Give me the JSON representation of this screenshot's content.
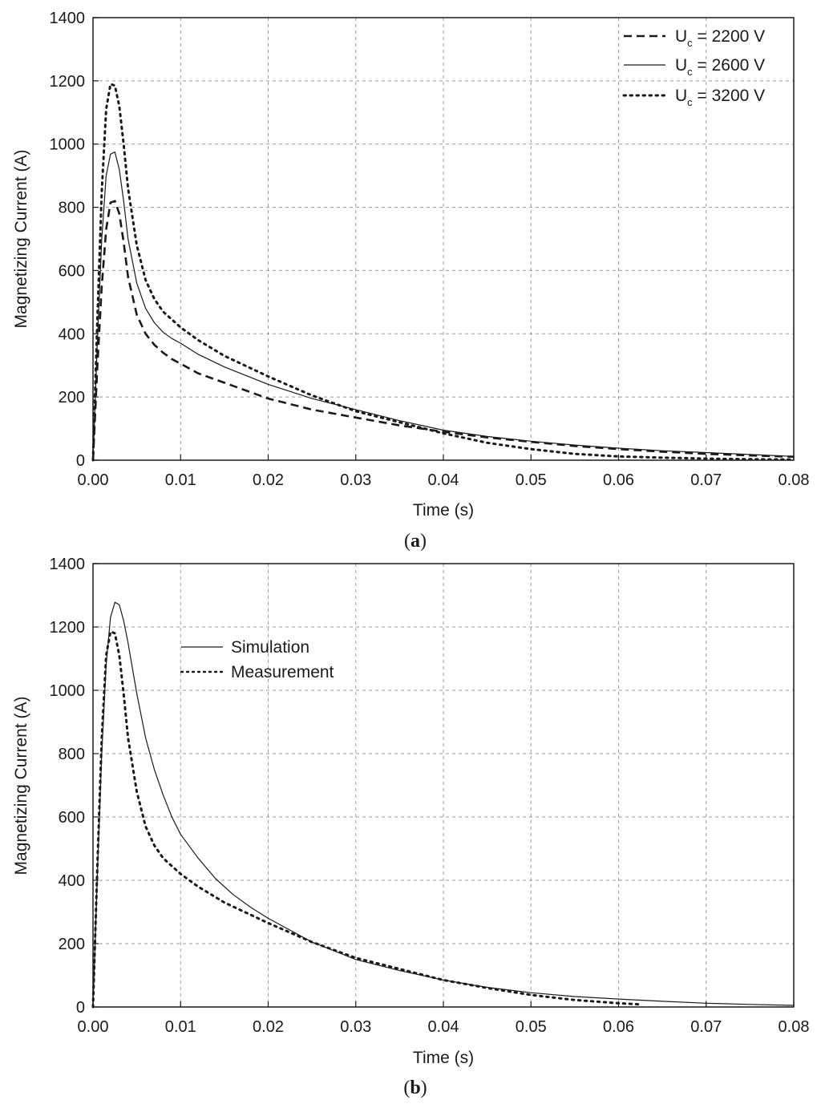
{
  "figure": {
    "panels": [
      {
        "caption_prefix": "(",
        "caption_letter": "a",
        "caption_suffix": ")"
      },
      {
        "caption_prefix": "(",
        "caption_letter": "b",
        "caption_suffix": ")"
      }
    ]
  },
  "chart_data": [
    {
      "type": "line",
      "title": "",
      "xlabel": "Time (s)",
      "ylabel": "Magnetizing Current (A)",
      "xlim": [
        0,
        0.08
      ],
      "ylim": [
        0,
        1400
      ],
      "x_ticks": [
        "0.00",
        "0.01",
        "0.02",
        "0.03",
        "0.04",
        "0.05",
        "0.06",
        "0.07",
        "0.08"
      ],
      "y_ticks": [
        "0",
        "200",
        "400",
        "600",
        "800",
        "1000",
        "1200",
        "1400"
      ],
      "grid": true,
      "legend_position": "top-right",
      "series": [
        {
          "name_prefix": "U",
          "name_sub": "c",
          "name_suffix": " = 2200 V",
          "style": "dashed",
          "x": [
            0,
            0.0005,
            0.001,
            0.0015,
            0.002,
            0.0025,
            0.003,
            0.0035,
            0.004,
            0.005,
            0.006,
            0.007,
            0.008,
            0.009,
            0.01,
            0.012,
            0.015,
            0.02,
            0.025,
            0.03,
            0.035,
            0.04,
            0.045,
            0.05,
            0.055,
            0.06,
            0.065,
            0.07,
            0.075,
            0.08
          ],
          "y": [
            0,
            300,
            550,
            730,
            815,
            820,
            780,
            690,
            580,
            460,
            400,
            365,
            340,
            320,
            305,
            275,
            245,
            195,
            160,
            135,
            110,
            90,
            72,
            58,
            45,
            35,
            27,
            20,
            15,
            11
          ]
        },
        {
          "name_prefix": "U",
          "name_sub": "c",
          "name_suffix": " = 2600 V",
          "style": "solid",
          "x": [
            0,
            0.0005,
            0.001,
            0.0015,
            0.002,
            0.0025,
            0.003,
            0.0035,
            0.004,
            0.005,
            0.006,
            0.007,
            0.008,
            0.009,
            0.01,
            0.012,
            0.015,
            0.02,
            0.025,
            0.03,
            0.035,
            0.04,
            0.045,
            0.05,
            0.055,
            0.06,
            0.065,
            0.07,
            0.075,
            0.08
          ],
          "y": [
            0,
            380,
            700,
            900,
            968,
            975,
            920,
            820,
            700,
            560,
            480,
            435,
            405,
            385,
            370,
            335,
            295,
            240,
            195,
            160,
            125,
            95,
            75,
            60,
            48,
            38,
            30,
            24,
            18,
            12
          ]
        },
        {
          "name_prefix": "U",
          "name_sub": "c",
          "name_suffix": " = 3200 V",
          "style": "dotted",
          "x": [
            0,
            0.0005,
            0.001,
            0.0015,
            0.002,
            0.0025,
            0.003,
            0.0035,
            0.004,
            0.005,
            0.006,
            0.007,
            0.008,
            0.009,
            0.01,
            0.012,
            0.015,
            0.02,
            0.025,
            0.03,
            0.035,
            0.04,
            0.045,
            0.05,
            0.055,
            0.06,
            0.065,
            0.07,
            0.075,
            0.08
          ],
          "y": [
            0,
            450,
            850,
            1110,
            1190,
            1185,
            1120,
            1000,
            860,
            680,
            570,
            510,
            470,
            445,
            420,
            380,
            330,
            265,
            205,
            155,
            120,
            85,
            55,
            35,
            20,
            12,
            8,
            5,
            3,
            2
          ]
        }
      ]
    },
    {
      "type": "line",
      "title": "",
      "xlabel": "Time (s)",
      "ylabel": "Magnetizing Current (A)",
      "xlim": [
        0,
        0.08
      ],
      "ylim": [
        0,
        1400
      ],
      "x_ticks": [
        "0.00",
        "0.01",
        "0.02",
        "0.03",
        "0.04",
        "0.05",
        "0.06",
        "0.07",
        "0.08"
      ],
      "y_ticks": [
        "0",
        "200",
        "400",
        "600",
        "800",
        "1000",
        "1200",
        "1400"
      ],
      "grid": true,
      "legend_position": "upper-middle-left",
      "series": [
        {
          "name": "Simulation",
          "style": "solid",
          "x": [
            0,
            0.0005,
            0.001,
            0.0015,
            0.002,
            0.0025,
            0.003,
            0.0035,
            0.004,
            0.005,
            0.006,
            0.007,
            0.008,
            0.009,
            0.01,
            0.012,
            0.014,
            0.016,
            0.018,
            0.02,
            0.025,
            0.03,
            0.035,
            0.04,
            0.045,
            0.05,
            0.055,
            0.06,
            0.065,
            0.07,
            0.075,
            0.08
          ],
          "y": [
            0,
            420,
            800,
            1080,
            1230,
            1278,
            1270,
            1220,
            1150,
            990,
            850,
            750,
            670,
            600,
            545,
            470,
            405,
            355,
            315,
            280,
            205,
            150,
            115,
            85,
            62,
            45,
            33,
            25,
            18,
            12,
            8,
            5
          ]
        },
        {
          "name": "Measurement",
          "style": "dotted",
          "x": [
            0,
            0.0005,
            0.001,
            0.0015,
            0.002,
            0.0025,
            0.003,
            0.0035,
            0.004,
            0.005,
            0.006,
            0.007,
            0.008,
            0.009,
            0.01,
            0.012,
            0.015,
            0.02,
            0.025,
            0.03,
            0.035,
            0.04,
            0.045,
            0.05,
            0.055,
            0.06,
            0.0625
          ],
          "y": [
            0,
            450,
            850,
            1110,
            1185,
            1180,
            1110,
            990,
            850,
            680,
            570,
            510,
            470,
            445,
            420,
            380,
            330,
            265,
            205,
            155,
            120,
            85,
            60,
            38,
            22,
            12,
            8
          ]
        }
      ]
    }
  ]
}
